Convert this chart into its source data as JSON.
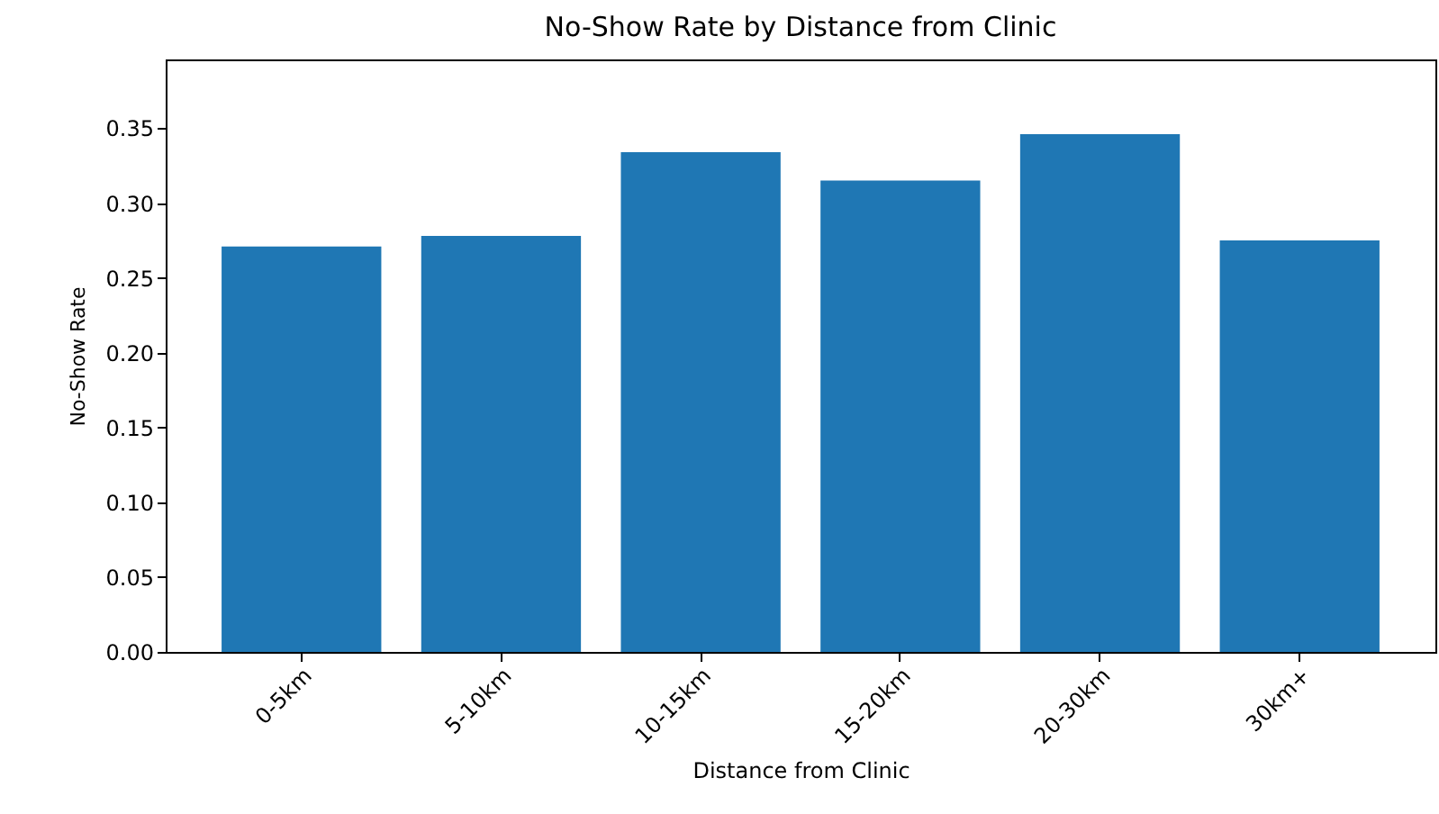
{
  "chart_data": {
    "type": "bar",
    "title": "No-Show Rate by Distance from Clinic",
    "xlabel": "Distance from Clinic",
    "ylabel": "No-Show Rate",
    "categories": [
      "0-5km",
      "5-10km",
      "10-15km",
      "15-20km",
      "20-30km",
      "30km+"
    ],
    "values": [
      0.271,
      0.278,
      0.334,
      0.315,
      0.346,
      0.275
    ],
    "color": "#1f77b4",
    "ylim": [
      0,
      0.396
    ],
    "yticks": [
      {
        "value": 0,
        "label": "0.00"
      },
      {
        "value": 0.05,
        "label": "0.05"
      },
      {
        "value": 0.1,
        "label": "0.10"
      },
      {
        "value": 0.15,
        "label": "0.15"
      },
      {
        "value": 0.2,
        "label": "0.20"
      },
      {
        "value": 0.25,
        "label": "0.25"
      },
      {
        "value": 0.3,
        "label": "0.30"
      },
      {
        "value": 0.35,
        "label": "0.35"
      }
    ],
    "grid": false
  }
}
